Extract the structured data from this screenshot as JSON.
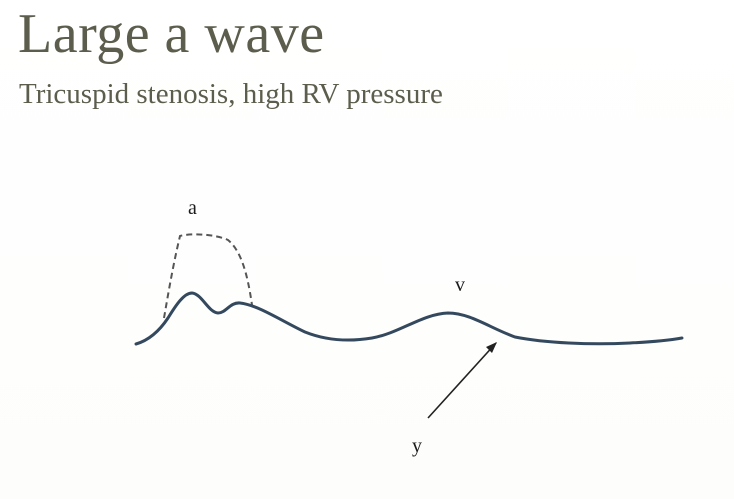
{
  "slide": {
    "title": "Large a wave",
    "subtitle": "Tricuspid stenosis, high RV pressure"
  },
  "diagram": {
    "labels": {
      "a": "a",
      "v": "v",
      "y": "y"
    },
    "colors": {
      "trace": "#34495e",
      "dashed": "#555555",
      "arrow": "#222222",
      "title": "#5c5d4c"
    }
  }
}
